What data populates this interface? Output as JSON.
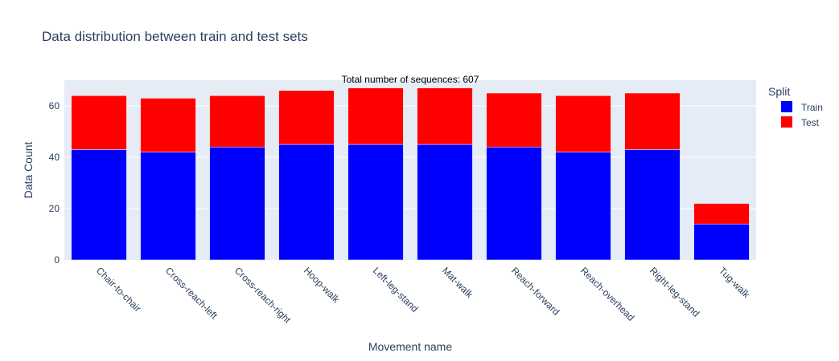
{
  "chart_data": {
    "type": "bar",
    "barmode": "stack",
    "title": "Data distribution between train and test sets",
    "xlabel": "Movement name",
    "ylabel": "Data Count",
    "ylim": [
      0,
      70
    ],
    "yticks": [
      0,
      20,
      40,
      60
    ],
    "grid": true,
    "annotation": "Total number of sequences: 607",
    "legend": {
      "title": "Split",
      "placement": "top-right"
    },
    "categories": [
      "Chair-to-chair",
      "Cross-reach-left",
      "Cross-reach-right",
      "Hoop-walk",
      "Left-leg-stand",
      "Mat-walk",
      "Reach-forward",
      "Reach-overhead",
      "Right-leg-stand",
      "Tug-walk"
    ],
    "series": [
      {
        "name": "Train",
        "color": "#0000ff",
        "values": [
          43,
          42,
          44,
          45,
          45,
          45,
          44,
          42,
          43,
          14
        ]
      },
      {
        "name": "Test",
        "color": "#ff0000",
        "values": [
          21,
          21,
          20,
          21,
          22,
          22,
          21,
          22,
          22,
          8
        ]
      }
    ]
  }
}
